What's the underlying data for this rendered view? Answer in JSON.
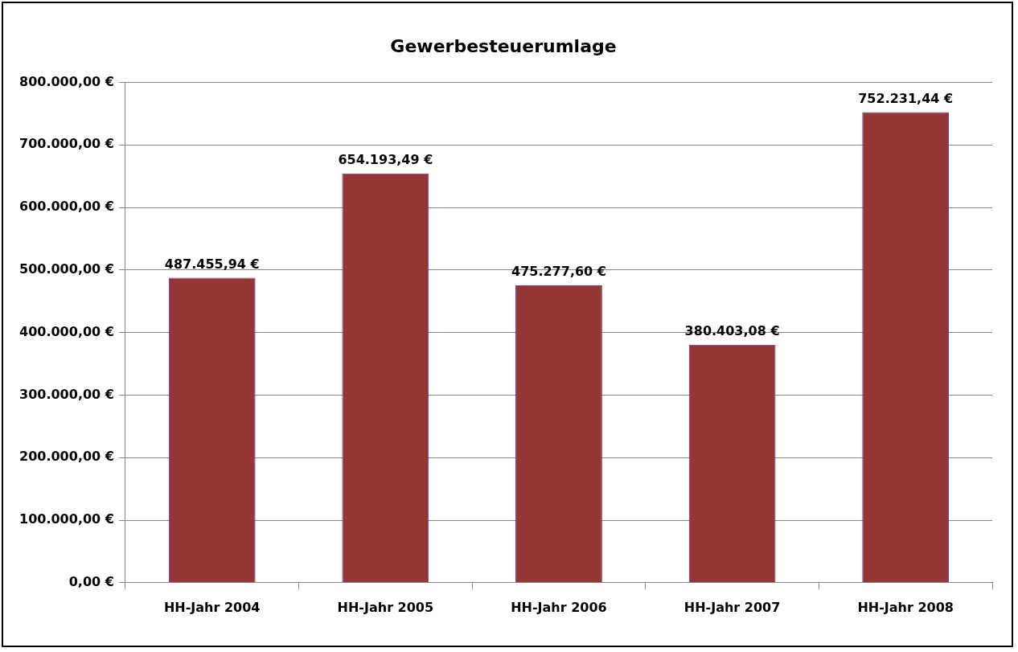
{
  "chart_data": {
    "type": "bar",
    "title": "Gewerbesteuerumlage",
    "categories": [
      "HH-Jahr 2004",
      "HH-Jahr 2005",
      "HH-Jahr 2006",
      "HH-Jahr 2007",
      "HH-Jahr 2008"
    ],
    "values": [
      487455.94,
      654193.49,
      475277.6,
      380403.08,
      752231.44
    ],
    "value_labels": [
      "487.455,94 €",
      "654.193,49 €",
      "475.277,60 €",
      "380.403,08 €",
      "752.231,44 €"
    ],
    "color": "#943634",
    "ylim": [
      0,
      800000
    ],
    "yticks": [
      {
        "value": 0,
        "label": "0,00 €"
      },
      {
        "value": 100000,
        "label": "100.000,00 €"
      },
      {
        "value": 200000,
        "label": "200.000,00 €"
      },
      {
        "value": 300000,
        "label": "300.000,00 €"
      },
      {
        "value": 400000,
        "label": "400.000,00 €"
      },
      {
        "value": 500000,
        "label": "500.000,00 €"
      },
      {
        "value": 600000,
        "label": "600.000,00 €"
      },
      {
        "value": 700000,
        "label": "700.000,00 €"
      },
      {
        "value": 800000,
        "label": "800.000,00 €"
      }
    ],
    "grid": "y",
    "legend": false
  }
}
